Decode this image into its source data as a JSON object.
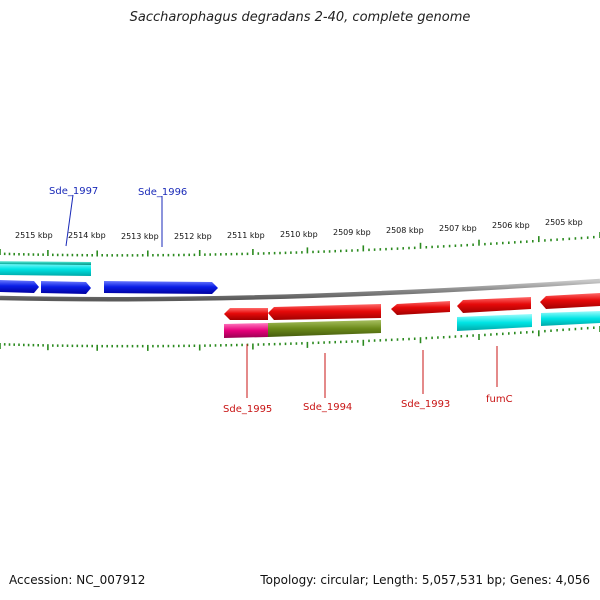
{
  "title": "Saccharophagus degradans 2-40, complete genome",
  "footer": {
    "accession": "Accession: NC_007912",
    "summary": "Topology: circular; Length: 5,057,531 bp; Genes: 4,056"
  },
  "colors": {
    "background": "#ffffff",
    "backbone": "#8a8a8a",
    "tick": "#2b8a1f",
    "forward_gene": "#0a1ee6",
    "reverse_gene": "#e60a0a",
    "forward_label": "#1a2ab8",
    "reverse_label": "#c81414",
    "cog_cyan": "#00e5e5",
    "cog_teal": "#1ec8b4",
    "cog_magenta": "#e6007a",
    "cog_olive": "#6b8a1a"
  },
  "scale_labels": [
    "2515 kbp",
    "2514 kbp",
    "2513 kbp",
    "2512 kbp",
    "2511 kbp",
    "2510 kbp",
    "2509 kbp",
    "2508 kbp",
    "2507 kbp",
    "2506 kbp",
    "2505 kbp"
  ],
  "gene_labels": {
    "forward": [
      "Sde_1997",
      "Sde_1996"
    ],
    "reverse": [
      "Sde_1995",
      "Sde_1994",
      "Sde_1993",
      "fumC"
    ]
  }
}
